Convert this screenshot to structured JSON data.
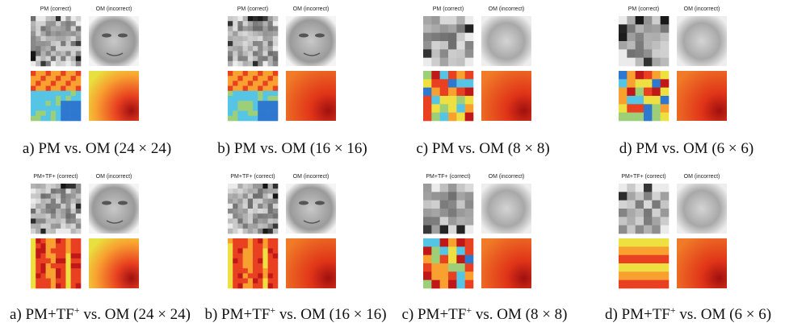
{
  "rows": [
    {
      "panels": [
        {
          "left_label": "PM (correct)",
          "right_label": "OM (incorrect)",
          "caption": "a) PM vs. OM (24 × 24)"
        },
        {
          "left_label": "PM (correct)",
          "right_label": "OM (incorrect)",
          "caption": "b) PM vs. OM (16 × 16)"
        },
        {
          "left_label": "PM (correct)",
          "right_label": "OM (incorrect)",
          "caption": "c) PM vs. OM (8 × 8)"
        },
        {
          "left_label": "PM (correct)",
          "right_label": "OM (incorrect)",
          "caption": "d) PM vs. OM (6 × 6)"
        }
      ]
    },
    {
      "panels": [
        {
          "left_label": "PM+TF+ (correct)",
          "right_label": "OM (incorrect)",
          "caption": {
            "before": "a) PM+TF",
            "sup": "+",
            "after": " vs. OM (24 × 24)"
          }
        },
        {
          "left_label": "PM+TF+ (correct)",
          "right_label": "OM (incorrect)",
          "caption": {
            "before": "b) PM+TF",
            "sup": "+",
            "after": " vs. OM (16 × 16)"
          }
        },
        {
          "left_label": "PM+TF+ (correct)",
          "right_label": "OM (incorrect)",
          "caption": {
            "before": "c) PM+TF",
            "sup": "+",
            "after": " vs. OM (8 × 8)"
          }
        },
        {
          "left_label": "PM+TF+ (correct)",
          "right_label": "OM (incorrect)",
          "caption": {
            "before": "d) PM+TF",
            "sup": "+",
            "after": " vs. OM (6 × 6)"
          }
        }
      ]
    }
  ]
}
